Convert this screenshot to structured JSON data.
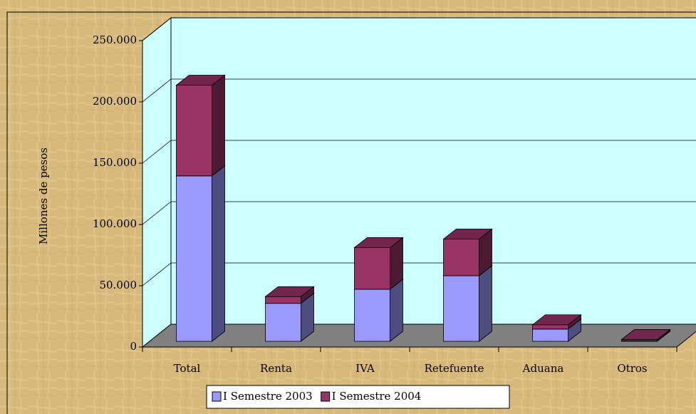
{
  "chart_data": {
    "type": "bar3d_stacked",
    "y_label": "Millones de pesos",
    "categories": [
      "Total",
      "Renta",
      "IVA",
      "Retefuente",
      "Aduana",
      "Otros"
    ],
    "series": [
      {
        "name": "I Semestre 2003",
        "color": "#9999ff",
        "values": [
          135000,
          31000,
          42500,
          53500,
          10000,
          500
        ]
      },
      {
        "name": "I Semestre 2004",
        "color": "#993366",
        "values": [
          74000,
          5500,
          34000,
          30000,
          3500,
          1000
        ]
      }
    ],
    "ylim": [
      0,
      250000
    ],
    "yticks": [
      0,
      {
        "value": 50000,
        "label": "50.000"
      },
      {
        "value": 100000,
        "label": "100.000"
      },
      {
        "value": 150000,
        "label": "150.000"
      },
      {
        "value": 200000,
        "label": "200.000"
      },
      {
        "value": 250000,
        "label": "250.000"
      }
    ],
    "grid": true
  }
}
